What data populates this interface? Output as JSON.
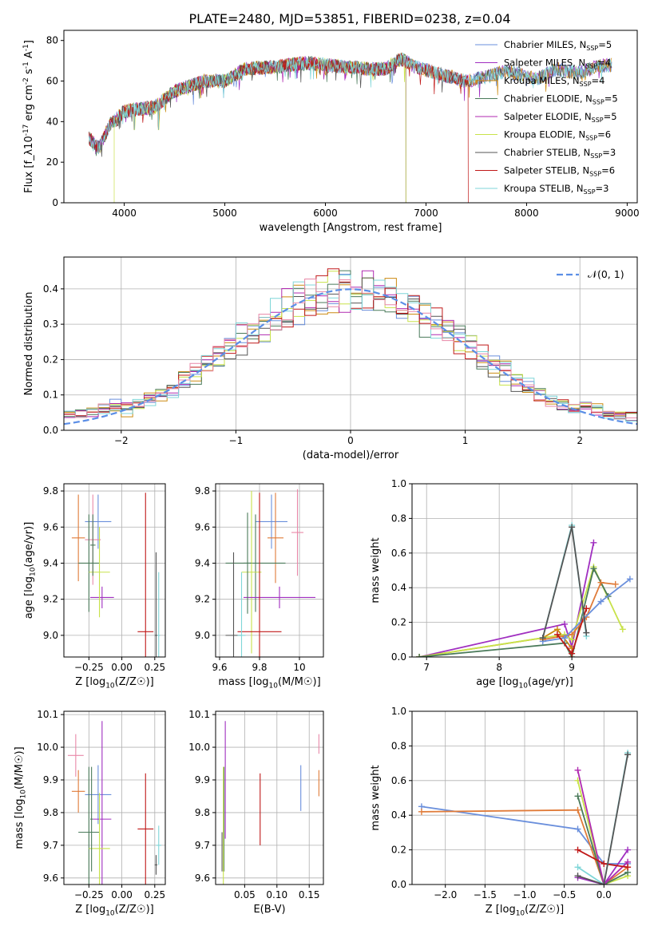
{
  "title": "PLATE=2480, MJD=53851, FIBERID=0238, z=0.04",
  "colors": {
    "chabrier_miles": "#6a8fdc",
    "salpeter_miles": "#a02fc0",
    "kroupa_miles": "#cc8a10",
    "chabrier_elodie": "#4a7a5a",
    "salpeter_elodie": "#b02ab0",
    "kroupa_elodie": "#c8e24a",
    "chabrier_stelib": "#555555",
    "salpeter_stelib": "#c01818",
    "kroupa_stelib": "#7fd6d8",
    "orange_track": "#e07b39",
    "pink_track": "#e888a8",
    "normal_curve": "#5b8ee6"
  },
  "chart_data": [
    {
      "id": "spectrum",
      "type": "line",
      "xlabel": "wavelength [Angstrom, rest frame]",
      "ylabel": "Flux [f_λ10^-17 erg cm^-2 s^-1 A^-1]",
      "xlim": [
        3400,
        9100
      ],
      "ylim": [
        0,
        85
      ],
      "xticks": [
        4000,
        5000,
        6000,
        7000,
        8000,
        9000
      ],
      "yticks": [
        0,
        20,
        40,
        60,
        80
      ],
      "grid": false,
      "legend_position": "top-right",
      "continuum": [
        [
          3650,
          32
        ],
        [
          3750,
          27
        ],
        [
          3850,
          38
        ],
        [
          4000,
          45
        ],
        [
          4100,
          46
        ],
        [
          4300,
          47
        ],
        [
          4500,
          55
        ],
        [
          4800,
          60
        ],
        [
          5000,
          60
        ],
        [
          5200,
          66
        ],
        [
          5500,
          67
        ],
        [
          5800,
          69
        ],
        [
          6000,
          68
        ],
        [
          6200,
          67
        ],
        [
          6400,
          66
        ],
        [
          6600,
          66
        ],
        [
          6750,
          71
        ],
        [
          6900,
          67
        ],
        [
          7100,
          64
        ],
        [
          7400,
          60
        ],
        [
          7600,
          62
        ],
        [
          7800,
          65
        ],
        [
          8100,
          61
        ],
        [
          8300,
          66
        ],
        [
          8500,
          64
        ],
        [
          8700,
          67
        ],
        [
          8850,
          68
        ]
      ],
      "series": [
        {
          "label": "Chabrier MILES, N_SSP=5",
          "color_key": "chabrier_miles",
          "x_end": 8850
        },
        {
          "label": "Salpeter MILES, N_SSP=4",
          "color_key": "salpeter_miles",
          "x_end": 8850
        },
        {
          "label": "Kroupa MILES, N_SSP=4",
          "color_key": "kroupa_miles",
          "x_end": 8850
        },
        {
          "label": "Chabrier ELODIE, N_SSP=5",
          "color_key": "chabrier_elodie",
          "x_end": 6800
        },
        {
          "label": "Salpeter ELODIE, N_SSP=5",
          "color_key": "salpeter_elodie",
          "x_end": 6800
        },
        {
          "label": "Kroupa ELODIE, N_SSP=6",
          "color_key": "kroupa_elodie",
          "x_end": 6800,
          "x_start": 3900
        },
        {
          "label": "Chabrier STELIB, N_SSP=3",
          "color_key": "chabrier_stelib",
          "x_end": 8850
        },
        {
          "label": "Salpeter STELIB, N_SSP=6",
          "color_key": "salpeter_stelib",
          "x_end": 7420
        },
        {
          "label": "Kroupa STELIB, N_SSP=3",
          "color_key": "kroupa_stelib",
          "x_end": 8850
        }
      ]
    },
    {
      "id": "residuals",
      "type": "histogram",
      "xlabel": "(data-model)/error",
      "ylabel": "Normed distribution",
      "xlim": [
        -2.5,
        2.5
      ],
      "ylim": [
        0,
        0.49
      ],
      "xticks": [
        -2,
        -1,
        0,
        1,
        2
      ],
      "yticks": [
        0.0,
        0.1,
        0.2,
        0.3,
        0.4
      ],
      "grid": true,
      "bin_width": 0.1,
      "legend": {
        "label": "𝒩(0, 1)",
        "position": "top-right"
      },
      "series_color_keys": [
        "chabrier_miles",
        "kroupa_miles",
        "chabrier_elodie",
        "salpeter_elodie",
        "kroupa_elodie",
        "chabrier_stelib",
        "salpeter_stelib",
        "kroupa_stelib",
        "pink_track"
      ]
    },
    {
      "id": "age_vs_Z",
      "type": "errorbar",
      "xlabel": "Z [log10(Z/Z☉)]",
      "ylabel": "age [log10(age/yr)]",
      "xlim": [
        -0.44,
        0.33
      ],
      "ylim": [
        8.88,
        9.84
      ],
      "xticks": [
        -0.25,
        0.0,
        0.25
      ],
      "xticklabels": [
        "−0.25",
        "0.00",
        "0.25"
      ],
      "yticks": [
        9.0,
        9.2,
        9.4,
        9.6,
        9.8
      ],
      "grid": true,
      "points": [
        {
          "x": -0.18,
          "xerr": 0.1,
          "y": 9.63,
          "yerr": 0.15,
          "color_key": "chabrier_miles"
        },
        {
          "x": -0.33,
          "xerr": 0.05,
          "y": 9.54,
          "yerr": 0.24,
          "color_key": "orange_track"
        },
        {
          "x": -0.22,
          "xerr": 0.06,
          "y": 9.53,
          "yerr": 0.25,
          "color_key": "pink_track"
        },
        {
          "x": -0.25,
          "xerr": 0.08,
          "y": 9.4,
          "yerr": 0.27,
          "color_key": "chabrier_elodie"
        },
        {
          "x": -0.15,
          "xerr": 0.09,
          "y": 9.21,
          "yerr": 0.06,
          "color_key": "salpeter_miles"
        },
        {
          "x": -0.17,
          "xerr": 0.08,
          "y": 9.35,
          "yerr": 0.25,
          "color_key": "kroupa_elodie"
        },
        {
          "x": 0.18,
          "xerr": 0.06,
          "y": 9.02,
          "yerr": 0.77,
          "color_key": "salpeter_stelib"
        },
        {
          "x": 0.26,
          "xerr": 0.01,
          "y": 9.0,
          "yerr": 0.46,
          "color_key": "chabrier_stelib"
        },
        {
          "x": 0.28,
          "xerr": 0.01,
          "y": 9.0,
          "yerr": 0.35,
          "color_key": "kroupa_stelib"
        },
        {
          "x": -0.22,
          "xerr": 0.02,
          "y": 9.5,
          "yerr": 0.17,
          "color_key": "chabrier_elodie"
        }
      ]
    },
    {
      "id": "age_vs_mass",
      "type": "errorbar",
      "xlabel": "mass [log10(M/M☉)]",
      "ylabel": "",
      "xlim": [
        9.58,
        10.12
      ],
      "ylim": [
        8.88,
        9.84
      ],
      "xticks": [
        9.6,
        9.8,
        10.0
      ],
      "yticks": [
        9.0,
        9.2,
        9.4,
        9.6,
        9.8
      ],
      "grid": true,
      "points": [
        {
          "x": 9.86,
          "xerr": 0.08,
          "y": 9.63,
          "yerr": 0.15,
          "color_key": "chabrier_miles"
        },
        {
          "x": 9.88,
          "xerr": 0.04,
          "y": 9.54,
          "yerr": 0.25,
          "color_key": "orange_track"
        },
        {
          "x": 9.99,
          "xerr": 0.03,
          "y": 9.57,
          "yerr": 0.24,
          "color_key": "pink_track"
        },
        {
          "x": 9.78,
          "xerr": 0.15,
          "y": 9.4,
          "yerr": 0.27,
          "color_key": "chabrier_elodie"
        },
        {
          "x": 9.76,
          "xerr": 0.05,
          "y": 9.35,
          "yerr": 0.45,
          "color_key": "kroupa_elodie"
        },
        {
          "x": 9.9,
          "xerr": 0.18,
          "y": 9.21,
          "yerr": 0.06,
          "color_key": "salpeter_miles"
        },
        {
          "x": 9.8,
          "xerr": 0.11,
          "y": 9.02,
          "yerr": 0.77,
          "color_key": "salpeter_stelib"
        },
        {
          "x": 9.67,
          "xerr": 0.04,
          "y": 9.0,
          "yerr": 0.46,
          "color_key": "chabrier_stelib"
        },
        {
          "x": 9.71,
          "xerr": 0.02,
          "y": 9.0,
          "yerr": 0.35,
          "color_key": "kroupa_stelib"
        },
        {
          "x": 9.74,
          "xerr": 0.02,
          "y": 9.4,
          "yerr": 0.28,
          "color_key": "chabrier_elodie"
        }
      ]
    },
    {
      "id": "weight_vs_age",
      "type": "line",
      "xlabel": "age [log10(age/yr)]",
      "ylabel": "mass weight",
      "xlim": [
        6.8,
        9.9
      ],
      "ylim": [
        0,
        1
      ],
      "xticks": [
        7,
        8,
        9
      ],
      "yticks": [
        0.0,
        0.2,
        0.4,
        0.6,
        0.8,
        1.0
      ],
      "grid": true,
      "series": [
        {
          "color_key": "salpeter_miles",
          "points": [
            [
              6.9,
              0.0
            ],
            [
              8.9,
              0.19
            ],
            [
              9.0,
              0.06
            ],
            [
              9.3,
              0.66
            ]
          ]
        },
        {
          "color_key": "kroupa_miles",
          "points": [
            [
              6.9,
              0.0
            ],
            [
              8.6,
              0.11
            ],
            [
              8.8,
              0.16
            ],
            [
              9.0,
              0.05
            ]
          ]
        },
        {
          "color_key": "kroupa_elodie",
          "points": [
            [
              6.9,
              0.0
            ],
            [
              8.9,
              0.13
            ],
            [
              9.0,
              0.1
            ],
            [
              9.3,
              0.52
            ],
            [
              9.7,
              0.16
            ]
          ]
        },
        {
          "color_key": "chabrier_elodie",
          "points": [
            [
              6.9,
              0.0
            ],
            [
              8.9,
              0.08
            ],
            [
              9.0,
              0.0
            ],
            [
              9.3,
              0.51
            ],
            [
              9.5,
              0.35
            ]
          ]
        },
        {
          "color_key": "orange_track",
          "points": [
            [
              8.6,
              0.1
            ],
            [
              9.0,
              0.13
            ],
            [
              9.2,
              0.23
            ],
            [
              9.4,
              0.43
            ],
            [
              9.6,
              0.42
            ]
          ]
        },
        {
          "color_key": "chabrier_miles",
          "points": [
            [
              8.6,
              0.09
            ],
            [
              8.9,
              0.11
            ],
            [
              9.4,
              0.32
            ],
            [
              9.8,
              0.45
            ]
          ]
        },
        {
          "color_key": "salpeter_stelib",
          "points": [
            [
              8.8,
              0.13
            ],
            [
              9.0,
              0.02
            ],
            [
              9.2,
              0.28
            ]
          ]
        },
        {
          "color_key": "kroupa_stelib",
          "points": [
            [
              8.6,
              0.11
            ],
            [
              9.0,
              0.76
            ],
            [
              9.2,
              0.12
            ]
          ]
        },
        {
          "color_key": "chabrier_stelib",
          "points": [
            [
              8.6,
              0.11
            ],
            [
              9.0,
              0.75
            ],
            [
              9.2,
              0.14
            ]
          ]
        }
      ]
    },
    {
      "id": "mass_vs_Z",
      "type": "errorbar",
      "xlabel": "Z [log10(Z/Z☉)]",
      "ylabel": "mass [log10(M/M☉)]",
      "xlim": [
        -0.44,
        0.33
      ],
      "ylim": [
        9.58,
        10.11
      ],
      "xticks": [
        -0.25,
        0.0,
        0.25
      ],
      "xticklabels": [
        "−0.25",
        "0.00",
        "0.25"
      ],
      "yticks": [
        9.6,
        9.7,
        9.8,
        9.9,
        10.0,
        10.1
      ],
      "grid": true,
      "points": [
        {
          "x": -0.35,
          "xerr": 0.06,
          "y": 9.975,
          "yerr": 0.065,
          "color_key": "pink_track"
        },
        {
          "x": -0.33,
          "xerr": 0.05,
          "y": 9.865,
          "yerr": 0.065,
          "color_key": "orange_track"
        },
        {
          "x": -0.18,
          "xerr": 0.1,
          "y": 9.855,
          "yerr": 0.09,
          "color_key": "chabrier_miles"
        },
        {
          "x": -0.15,
          "xerr": 0.07,
          "y": 9.78,
          "yerr": 0.3,
          "color_key": "salpeter_miles"
        },
        {
          "x": -0.25,
          "xerr": 0.08,
          "y": 9.74,
          "yerr": 0.2,
          "color_key": "chabrier_elodie"
        },
        {
          "x": -0.17,
          "xerr": 0.08,
          "y": 9.69,
          "yerr": 0.17,
          "color_key": "kroupa_elodie"
        },
        {
          "x": 0.18,
          "xerr": 0.06,
          "y": 9.75,
          "yerr": 0.17,
          "color_key": "salpeter_stelib"
        },
        {
          "x": 0.28,
          "xerr": 0.02,
          "y": 9.7,
          "yerr": 0.06,
          "color_key": "kroupa_stelib"
        },
        {
          "x": 0.26,
          "xerr": 0.01,
          "y": 9.64,
          "yerr": 0.03,
          "color_key": "chabrier_stelib"
        },
        {
          "x": -0.23,
          "xerr": 0.01,
          "y": 9.78,
          "yerr": 0.16,
          "color_key": "chabrier_elodie"
        }
      ]
    },
    {
      "id": "mass_vs_ebv",
      "type": "errorbar",
      "xlabel": "E(B-V)",
      "ylabel": "",
      "xlim": [
        0.005,
        0.172
      ],
      "ylim": [
        9.58,
        10.11
      ],
      "xticks": [
        0.05,
        0.1,
        0.15
      ],
      "xticklabels": [
        "0.05",
        "0.10",
        "0.15"
      ],
      "yticks": [
        9.6,
        9.7,
        9.8,
        9.9,
        10.0,
        10.1
      ],
      "grid": true,
      "points": [
        {
          "x": 0.02,
          "y": 9.9,
          "yerr": 0.18,
          "color_key": "salpeter_miles"
        },
        {
          "x": 0.018,
          "y": 9.78,
          "yerr": 0.16,
          "color_key": "chabrier_elodie"
        },
        {
          "x": 0.017,
          "y": 9.74,
          "yerr": 0.2,
          "color_key": "kroupa_elodie"
        },
        {
          "x": 0.015,
          "y": 9.68,
          "yerr": 0.06,
          "color_key": "chabrier_stelib"
        },
        {
          "x": 0.074,
          "y": 9.81,
          "yerr": 0.11,
          "color_key": "salpeter_stelib"
        },
        {
          "x": 0.137,
          "y": 9.875,
          "yerr": 0.07,
          "color_key": "chabrier_miles"
        },
        {
          "x": 0.165,
          "y": 9.89,
          "yerr": 0.04,
          "color_key": "orange_track"
        },
        {
          "x": 0.165,
          "y": 10.01,
          "yerr": 0.03,
          "color_key": "pink_track"
        }
      ]
    },
    {
      "id": "weight_vs_Z",
      "type": "line",
      "xlabel": "Z [log10(Z/Z☉)]",
      "ylabel": "mass weight",
      "xlim": [
        -2.42,
        0.42
      ],
      "ylim": [
        0,
        1
      ],
      "xticks": [
        -2.0,
        -1.5,
        -1.0,
        -0.5,
        0.0
      ],
      "xticklabels": [
        "−2.0",
        "−1.5",
        "−1.0",
        "−0.5",
        "0.0"
      ],
      "yticks": [
        0.0,
        0.2,
        0.4,
        0.6,
        0.8,
        1.0
      ],
      "grid": true,
      "series": [
        {
          "color_key": "chabrier_miles",
          "points": [
            [
              -2.3,
              0.45
            ],
            [
              -0.33,
              0.32
            ],
            [
              0.0,
              0.12
            ],
            [
              0.3,
              0.12
            ]
          ]
        },
        {
          "color_key": "orange_track",
          "points": [
            [
              -2.3,
              0.42
            ],
            [
              -0.33,
              0.43
            ],
            [
              0.0,
              0.0
            ],
            [
              0.3,
              0.1
            ]
          ]
        },
        {
          "color_key": "salpeter_miles",
          "points": [
            [
              -0.33,
              0.04
            ],
            [
              0.0,
              0.0
            ],
            [
              0.3,
              0.2
            ]
          ]
        },
        {
          "color_key": "kroupa_elodie",
          "points": [
            [
              -0.33,
              0.6
            ],
            [
              0.0,
              0.0
            ],
            [
              0.3,
              0.05
            ]
          ]
        },
        {
          "color_key": "chabrier_elodie",
          "points": [
            [
              -0.33,
              0.51
            ],
            [
              0.0,
              0.0
            ],
            [
              0.3,
              0.07
            ]
          ]
        },
        {
          "color_key": "salpeter_elodie",
          "points": [
            [
              -0.33,
              0.66
            ],
            [
              0.0,
              0.0
            ],
            [
              0.3,
              0.13
            ]
          ]
        },
        {
          "color_key": "salpeter_stelib",
          "points": [
            [
              -0.33,
              0.2
            ],
            [
              0.0,
              0.12
            ],
            [
              0.3,
              0.1
            ]
          ]
        },
        {
          "color_key": "kroupa_stelib",
          "points": [
            [
              -0.33,
              0.1
            ],
            [
              0.0,
              0.0
            ],
            [
              0.3,
              0.76
            ]
          ]
        },
        {
          "color_key": "chabrier_stelib",
          "points": [
            [
              -0.33,
              0.05
            ],
            [
              0.0,
              0.0
            ],
            [
              0.3,
              0.75
            ]
          ]
        }
      ]
    }
  ]
}
